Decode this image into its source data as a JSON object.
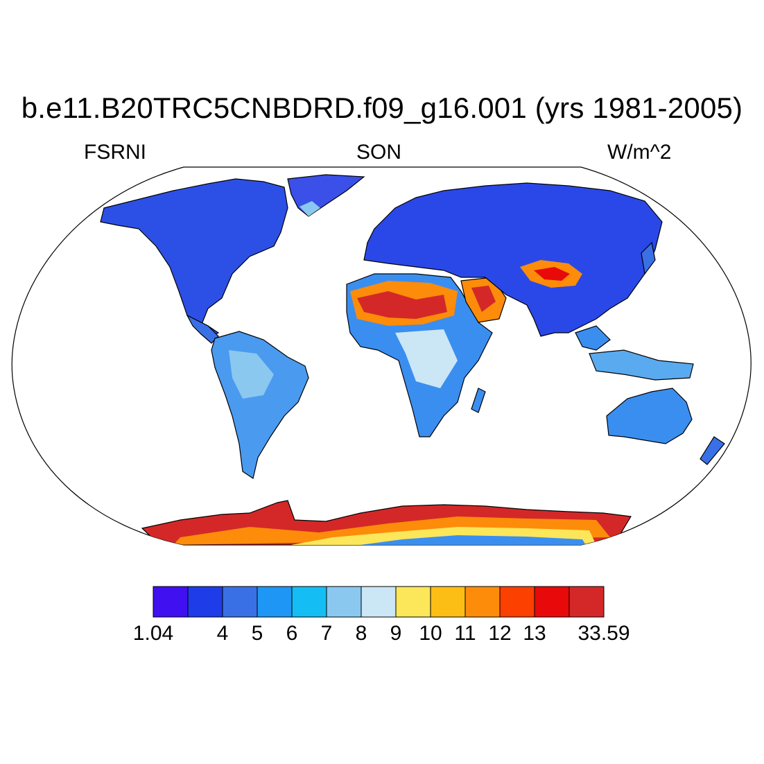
{
  "title": "b.e11.B20TRC5CNBDRD.f09_g16.001 (yrs 1981-2005)",
  "subtitle_left": "FSRNI",
  "subtitle_center": "SON",
  "subtitle_right": "W/m^2",
  "colorbar": {
    "colors": [
      "#4010f0",
      "#1e3ce8",
      "#3a70e6",
      "#1e96f5",
      "#14bef5",
      "#8ac8f0",
      "#cbe6f5",
      "#fce65a",
      "#fcbe14",
      "#fc8c0a",
      "#fc4000",
      "#e80a0a",
      "#d42828"
    ],
    "labels": [
      "1.04",
      "4",
      "5",
      "6",
      "7",
      "8",
      "9",
      "10",
      "11",
      "12",
      "13",
      "33.59"
    ],
    "label_boundaries": [
      0,
      2,
      3,
      4,
      5,
      6,
      7,
      8,
      9,
      10,
      11,
      13
    ]
  }
}
